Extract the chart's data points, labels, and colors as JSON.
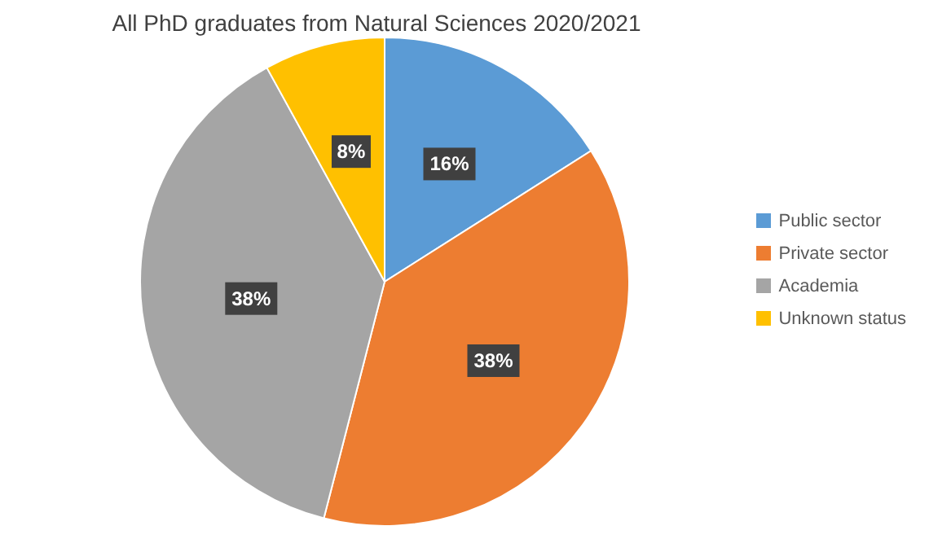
{
  "chart_data": {
    "type": "pie",
    "title": "All PhD graduates from Natural Sciences 2020/2021",
    "categories": [
      "Public sector",
      "Private sector",
      "Academia",
      "Unknown status"
    ],
    "values": [
      16,
      38,
      38,
      8
    ],
    "colors": [
      "#5b9bd5",
      "#ed7d31",
      "#a5a5a5",
      "#ffc000"
    ],
    "value_labels": [
      "16%",
      "38%",
      "38%",
      "8%"
    ],
    "legend": "right"
  }
}
